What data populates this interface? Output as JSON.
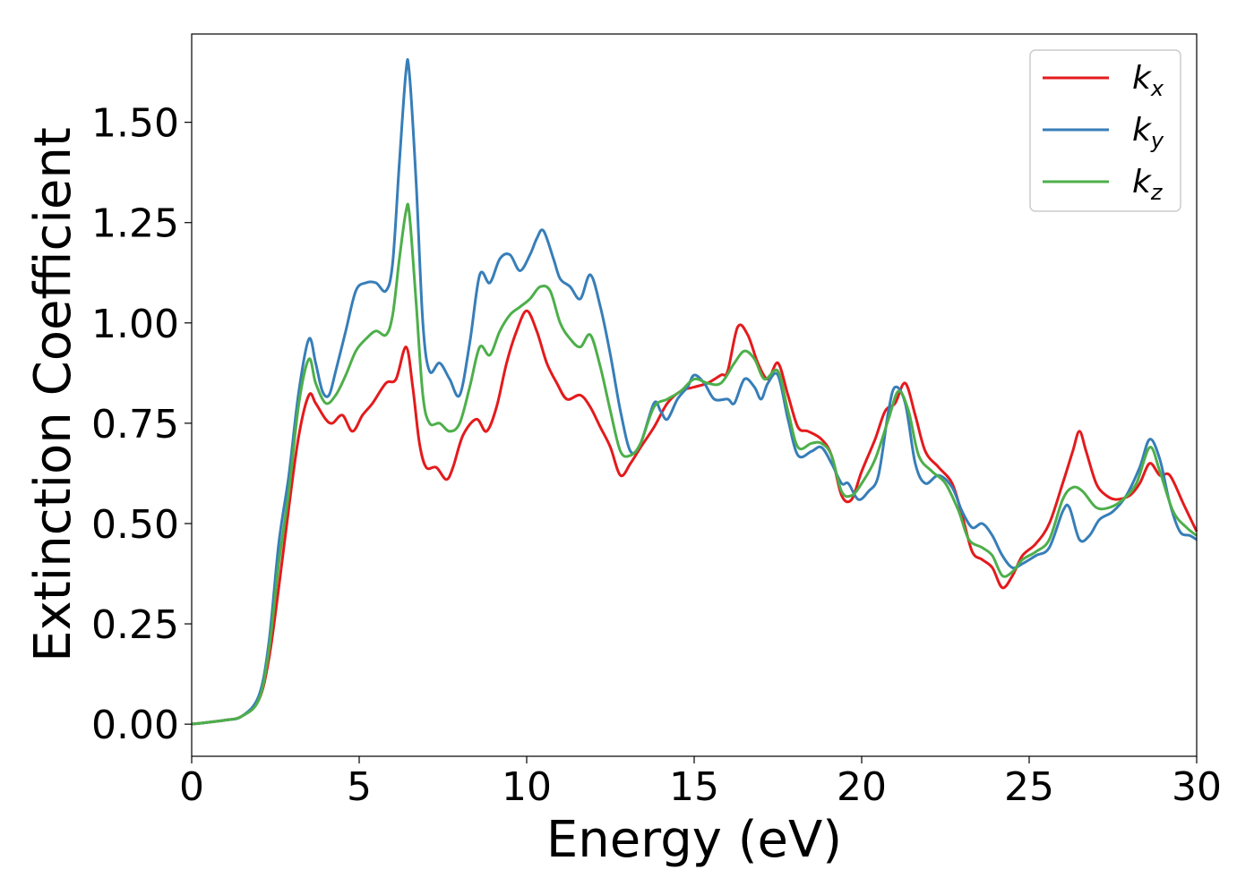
{
  "chart_data": {
    "type": "line",
    "xlabel": "Energy (eV)",
    "ylabel": "Extinction Coefficient",
    "xlim": [
      0,
      30
    ],
    "ylim": [
      -0.08,
      1.72
    ],
    "xticks": [
      0,
      5,
      10,
      15,
      20,
      25,
      30
    ],
    "xtick_labels": [
      "0",
      "5",
      "10",
      "15",
      "20",
      "25",
      "30"
    ],
    "yticks": [
      0.0,
      0.25,
      0.5,
      0.75,
      1.0,
      1.25,
      1.5
    ],
    "ytick_labels": [
      "0.00",
      "0.25",
      "0.50",
      "0.75",
      "1.00",
      "1.25",
      "1.50"
    ],
    "grid": false,
    "legend_position": "top-right",
    "series": [
      {
        "name": "k",
        "subscript": "x",
        "color": "#e41a1c",
        "points": [
          [
            0,
            0
          ],
          [
            1,
            0.01
          ],
          [
            1.5,
            0.02
          ],
          [
            2,
            0.06
          ],
          [
            2.3,
            0.16
          ],
          [
            2.6,
            0.34
          ],
          [
            2.9,
            0.54
          ],
          [
            3.2,
            0.72
          ],
          [
            3.5,
            0.82
          ],
          [
            3.7,
            0.8
          ],
          [
            4.0,
            0.76
          ],
          [
            4.2,
            0.75
          ],
          [
            4.5,
            0.77
          ],
          [
            4.8,
            0.73
          ],
          [
            5.1,
            0.77
          ],
          [
            5.4,
            0.8
          ],
          [
            5.8,
            0.85
          ],
          [
            6.1,
            0.86
          ],
          [
            6.4,
            0.94
          ],
          [
            6.6,
            0.84
          ],
          [
            6.8,
            0.7
          ],
          [
            7.0,
            0.64
          ],
          [
            7.3,
            0.64
          ],
          [
            7.6,
            0.61
          ],
          [
            7.8,
            0.64
          ],
          [
            8.1,
            0.72
          ],
          [
            8.5,
            0.76
          ],
          [
            8.8,
            0.73
          ],
          [
            9.1,
            0.79
          ],
          [
            9.4,
            0.9
          ],
          [
            9.7,
            0.98
          ],
          [
            10.0,
            1.03
          ],
          [
            10.3,
            0.98
          ],
          [
            10.6,
            0.9
          ],
          [
            10.9,
            0.85
          ],
          [
            11.2,
            0.81
          ],
          [
            11.6,
            0.82
          ],
          [
            11.9,
            0.79
          ],
          [
            12.2,
            0.74
          ],
          [
            12.5,
            0.69
          ],
          [
            12.8,
            0.62
          ],
          [
            13.1,
            0.65
          ],
          [
            13.4,
            0.69
          ],
          [
            13.8,
            0.74
          ],
          [
            14.2,
            0.8
          ],
          [
            14.6,
            0.83
          ],
          [
            15.0,
            0.84
          ],
          [
            15.4,
            0.85
          ],
          [
            15.8,
            0.87
          ],
          [
            16.0,
            0.88
          ],
          [
            16.3,
            0.99
          ],
          [
            16.6,
            0.97
          ],
          [
            16.9,
            0.9
          ],
          [
            17.2,
            0.86
          ],
          [
            17.5,
            0.9
          ],
          [
            17.8,
            0.82
          ],
          [
            18.1,
            0.74
          ],
          [
            18.4,
            0.73
          ],
          [
            18.8,
            0.71
          ],
          [
            19.1,
            0.67
          ],
          [
            19.4,
            0.57
          ],
          [
            19.7,
            0.56
          ],
          [
            20.0,
            0.63
          ],
          [
            20.4,
            0.71
          ],
          [
            20.7,
            0.78
          ],
          [
            21.0,
            0.8
          ],
          [
            21.3,
            0.85
          ],
          [
            21.6,
            0.77
          ],
          [
            21.9,
            0.68
          ],
          [
            22.3,
            0.64
          ],
          [
            22.7,
            0.6
          ],
          [
            23.0,
            0.52
          ],
          [
            23.3,
            0.43
          ],
          [
            23.6,
            0.41
          ],
          [
            23.9,
            0.39
          ],
          [
            24.2,
            0.34
          ],
          [
            24.5,
            0.37
          ],
          [
            24.8,
            0.42
          ],
          [
            25.2,
            0.45
          ],
          [
            25.6,
            0.5
          ],
          [
            26.0,
            0.6
          ],
          [
            26.3,
            0.68
          ],
          [
            26.5,
            0.73
          ],
          [
            26.7,
            0.68
          ],
          [
            27.0,
            0.6
          ],
          [
            27.3,
            0.57
          ],
          [
            27.6,
            0.56
          ],
          [
            28.0,
            0.57
          ],
          [
            28.3,
            0.6
          ],
          [
            28.6,
            0.65
          ],
          [
            28.9,
            0.62
          ],
          [
            29.2,
            0.62
          ],
          [
            29.6,
            0.55
          ],
          [
            30.0,
            0.48
          ]
        ]
      },
      {
        "name": "k",
        "subscript": "y",
        "color": "#377eb8",
        "points": [
          [
            0,
            0
          ],
          [
            1,
            0.01
          ],
          [
            1.5,
            0.02
          ],
          [
            2,
            0.07
          ],
          [
            2.3,
            0.2
          ],
          [
            2.6,
            0.45
          ],
          [
            2.9,
            0.62
          ],
          [
            3.2,
            0.83
          ],
          [
            3.5,
            0.96
          ],
          [
            3.7,
            0.9
          ],
          [
            3.9,
            0.83
          ],
          [
            4.1,
            0.82
          ],
          [
            4.3,
            0.88
          ],
          [
            4.6,
            0.98
          ],
          [
            4.9,
            1.08
          ],
          [
            5.2,
            1.1
          ],
          [
            5.5,
            1.1
          ],
          [
            5.8,
            1.08
          ],
          [
            6.0,
            1.15
          ],
          [
            6.2,
            1.4
          ],
          [
            6.4,
            1.63
          ],
          [
            6.5,
            1.62
          ],
          [
            6.7,
            1.35
          ],
          [
            6.9,
            1.0
          ],
          [
            7.1,
            0.88
          ],
          [
            7.4,
            0.9
          ],
          [
            7.7,
            0.86
          ],
          [
            8.0,
            0.82
          ],
          [
            8.3,
            0.95
          ],
          [
            8.6,
            1.12
          ],
          [
            8.9,
            1.1
          ],
          [
            9.2,
            1.16
          ],
          [
            9.5,
            1.17
          ],
          [
            9.8,
            1.13
          ],
          [
            10.1,
            1.17
          ],
          [
            10.3,
            1.21
          ],
          [
            10.5,
            1.23
          ],
          [
            10.8,
            1.16
          ],
          [
            11.0,
            1.11
          ],
          [
            11.3,
            1.09
          ],
          [
            11.6,
            1.06
          ],
          [
            11.9,
            1.12
          ],
          [
            12.2,
            1.04
          ],
          [
            12.5,
            0.92
          ],
          [
            12.8,
            0.78
          ],
          [
            13.1,
            0.68
          ],
          [
            13.4,
            0.7
          ],
          [
            13.8,
            0.8
          ],
          [
            14.0,
            0.78
          ],
          [
            14.2,
            0.76
          ],
          [
            14.5,
            0.81
          ],
          [
            14.8,
            0.84
          ],
          [
            15.0,
            0.87
          ],
          [
            15.3,
            0.85
          ],
          [
            15.6,
            0.81
          ],
          [
            16.0,
            0.81
          ],
          [
            16.2,
            0.8
          ],
          [
            16.5,
            0.86
          ],
          [
            16.8,
            0.84
          ],
          [
            17.0,
            0.81
          ],
          [
            17.2,
            0.85
          ],
          [
            17.5,
            0.87
          ],
          [
            17.8,
            0.76
          ],
          [
            18.1,
            0.67
          ],
          [
            18.5,
            0.68
          ],
          [
            18.8,
            0.69
          ],
          [
            19.1,
            0.65
          ],
          [
            19.4,
            0.6
          ],
          [
            19.6,
            0.6
          ],
          [
            19.9,
            0.56
          ],
          [
            20.2,
            0.58
          ],
          [
            20.5,
            0.62
          ],
          [
            20.8,
            0.78
          ],
          [
            21.0,
            0.84
          ],
          [
            21.3,
            0.8
          ],
          [
            21.6,
            0.65
          ],
          [
            21.9,
            0.6
          ],
          [
            22.3,
            0.62
          ],
          [
            22.7,
            0.59
          ],
          [
            23.0,
            0.53
          ],
          [
            23.3,
            0.49
          ],
          [
            23.6,
            0.5
          ],
          [
            23.9,
            0.47
          ],
          [
            24.2,
            0.42
          ],
          [
            24.5,
            0.39
          ],
          [
            24.8,
            0.4
          ],
          [
            25.2,
            0.42
          ],
          [
            25.6,
            0.44
          ],
          [
            26.0,
            0.53
          ],
          [
            26.2,
            0.54
          ],
          [
            26.5,
            0.46
          ],
          [
            26.8,
            0.47
          ],
          [
            27.1,
            0.51
          ],
          [
            27.5,
            0.53
          ],
          [
            27.9,
            0.57
          ],
          [
            28.3,
            0.64
          ],
          [
            28.6,
            0.71
          ],
          [
            28.9,
            0.66
          ],
          [
            29.2,
            0.55
          ],
          [
            29.5,
            0.48
          ],
          [
            29.8,
            0.47
          ],
          [
            30.0,
            0.46
          ]
        ]
      },
      {
        "name": "k",
        "subscript": "z",
        "color": "#4daf4a",
        "points": [
          [
            0,
            0
          ],
          [
            1,
            0.01
          ],
          [
            1.5,
            0.02
          ],
          [
            2,
            0.06
          ],
          [
            2.3,
            0.18
          ],
          [
            2.6,
            0.4
          ],
          [
            2.9,
            0.58
          ],
          [
            3.2,
            0.8
          ],
          [
            3.5,
            0.91
          ],
          [
            3.7,
            0.85
          ],
          [
            4.0,
            0.8
          ],
          [
            4.3,
            0.82
          ],
          [
            4.6,
            0.87
          ],
          [
            4.9,
            0.93
          ],
          [
            5.2,
            0.96
          ],
          [
            5.5,
            0.98
          ],
          [
            5.8,
            0.97
          ],
          [
            6.0,
            1.02
          ],
          [
            6.2,
            1.16
          ],
          [
            6.4,
            1.28
          ],
          [
            6.5,
            1.27
          ],
          [
            6.7,
            1.05
          ],
          [
            6.9,
            0.82
          ],
          [
            7.1,
            0.75
          ],
          [
            7.4,
            0.75
          ],
          [
            7.7,
            0.73
          ],
          [
            8.0,
            0.75
          ],
          [
            8.3,
            0.84
          ],
          [
            8.6,
            0.94
          ],
          [
            8.9,
            0.92
          ],
          [
            9.2,
            0.98
          ],
          [
            9.5,
            1.02
          ],
          [
            9.8,
            1.04
          ],
          [
            10.1,
            1.06
          ],
          [
            10.4,
            1.09
          ],
          [
            10.7,
            1.08
          ],
          [
            11.0,
            1.0
          ],
          [
            11.3,
            0.96
          ],
          [
            11.6,
            0.94
          ],
          [
            11.9,
            0.97
          ],
          [
            12.2,
            0.89
          ],
          [
            12.5,
            0.78
          ],
          [
            12.8,
            0.68
          ],
          [
            13.1,
            0.67
          ],
          [
            13.4,
            0.7
          ],
          [
            13.8,
            0.79
          ],
          [
            14.2,
            0.81
          ],
          [
            14.6,
            0.83
          ],
          [
            15.0,
            0.86
          ],
          [
            15.4,
            0.85
          ],
          [
            15.8,
            0.85
          ],
          [
            16.2,
            0.9
          ],
          [
            16.5,
            0.93
          ],
          [
            16.8,
            0.91
          ],
          [
            17.1,
            0.86
          ],
          [
            17.5,
            0.88
          ],
          [
            17.8,
            0.78
          ],
          [
            18.1,
            0.69
          ],
          [
            18.5,
            0.7
          ],
          [
            18.8,
            0.7
          ],
          [
            19.1,
            0.67
          ],
          [
            19.4,
            0.58
          ],
          [
            19.7,
            0.57
          ],
          [
            20.0,
            0.6
          ],
          [
            20.4,
            0.66
          ],
          [
            20.8,
            0.76
          ],
          [
            21.1,
            0.83
          ],
          [
            21.4,
            0.78
          ],
          [
            21.7,
            0.67
          ],
          [
            22.1,
            0.63
          ],
          [
            22.5,
            0.6
          ],
          [
            22.9,
            0.53
          ],
          [
            23.2,
            0.46
          ],
          [
            23.6,
            0.44
          ],
          [
            23.9,
            0.42
          ],
          [
            24.2,
            0.37
          ],
          [
            24.5,
            0.38
          ],
          [
            24.8,
            0.41
          ],
          [
            25.2,
            0.43
          ],
          [
            25.6,
            0.46
          ],
          [
            26.0,
            0.56
          ],
          [
            26.3,
            0.59
          ],
          [
            26.6,
            0.58
          ],
          [
            27.0,
            0.54
          ],
          [
            27.4,
            0.54
          ],
          [
            27.8,
            0.56
          ],
          [
            28.2,
            0.6
          ],
          [
            28.6,
            0.69
          ],
          [
            28.9,
            0.63
          ],
          [
            29.3,
            0.53
          ],
          [
            29.7,
            0.49
          ],
          [
            30.0,
            0.47
          ]
        ]
      }
    ]
  }
}
